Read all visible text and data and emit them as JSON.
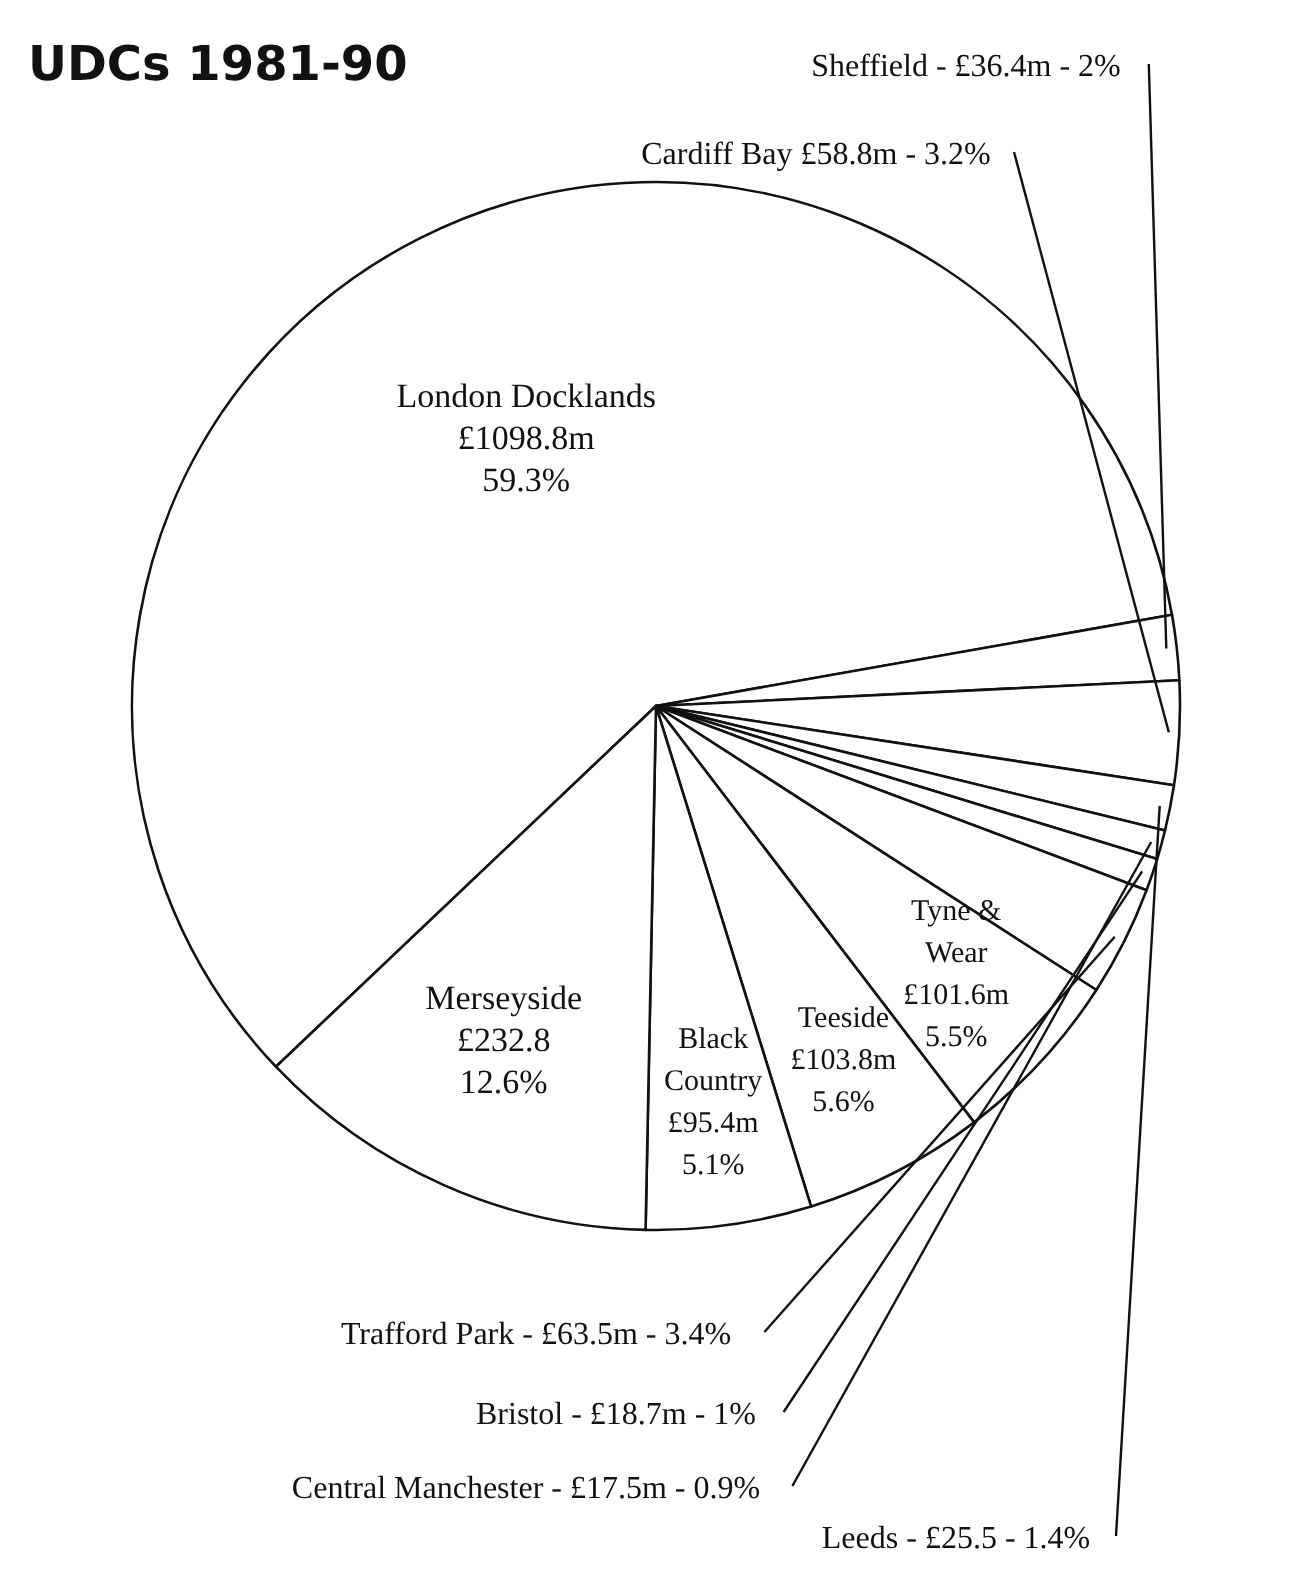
{
  "chart_data": {
    "type": "pie",
    "title": "UDCs 1981-90",
    "categories": [
      "London Docklands",
      "Sheffield",
      "Cardiff Bay",
      "Leeds",
      "Central Manchester",
      "Bristol",
      "Trafford Park",
      "Tyne & Wear",
      "Teeside",
      "Black Country",
      "Merseyside"
    ],
    "values": [
      59.3,
      2,
      3.2,
      1.4,
      0.9,
      1,
      3.4,
      5.5,
      5.6,
      5.1,
      12.6
    ],
    "value_labels": [
      "59.3%",
      "2%",
      "3.2%",
      "1.4%",
      "0.9%",
      "1%",
      "3.4%",
      "5.5%",
      "5.6%",
      "5.1%",
      "12.6%"
    ],
    "annotations": [
      "£1098.8m",
      "- £36.4m -",
      "£58.8m -",
      "- £25.5 -",
      "- £17.5m -",
      "- £18.7m -",
      "- £63.5m -",
      "£101.6m",
      "£103.8m",
      "£95.4m",
      "£232.8"
    ],
    "colors": [
      "#ffffff",
      "#ffffff",
      "#ffffff",
      "#ffffff",
      "#ffffff",
      "#ffffff",
      "#ffffff",
      "#ffffff",
      "#ffffff",
      "#ffffff",
      "#ffffff"
    ]
  }
}
